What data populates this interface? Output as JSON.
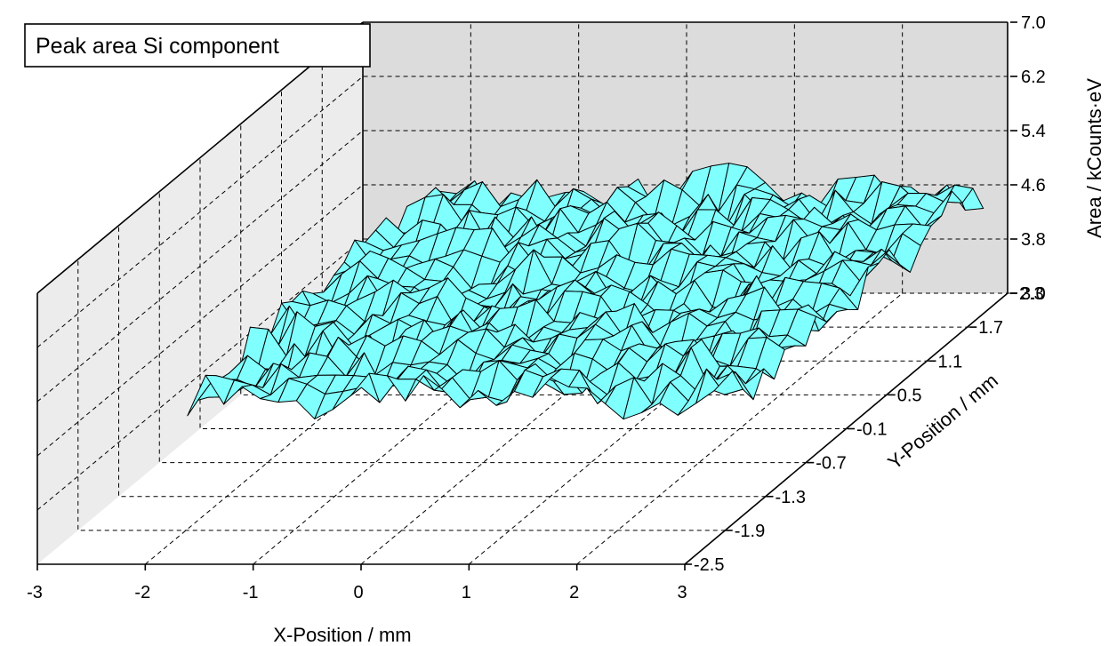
{
  "chart_data": {
    "type": "surface",
    "title": "Peak area Si component",
    "xlabel": "X-Position / mm",
    "ylabel": "Y-Position / mm",
    "zlabel": "Area / kCounts·eV",
    "x_ticks": [
      "-3",
      "-2",
      "-1",
      "0",
      "1",
      "2",
      "3"
    ],
    "y_ticks": [
      "-2.5",
      "-1.9",
      "-1.3",
      "-0.7",
      "-0.1",
      "0.5",
      "1.1",
      "1.7",
      "2.3"
    ],
    "z_ticks": [
      "3.0",
      "3.8",
      "4.6",
      "5.4",
      "6.2",
      "7.0"
    ],
    "xlim": [
      -3,
      3
    ],
    "ylim": [
      -2.5,
      2.3
    ],
    "zlim": [
      3.0,
      7.0
    ],
    "grid": true,
    "surface": {
      "x_range": [
        -2.3,
        2.75
      ],
      "y_range": [
        -1.4,
        2.3
      ],
      "mean_area": 4.55,
      "color": "#80ffff"
    }
  }
}
